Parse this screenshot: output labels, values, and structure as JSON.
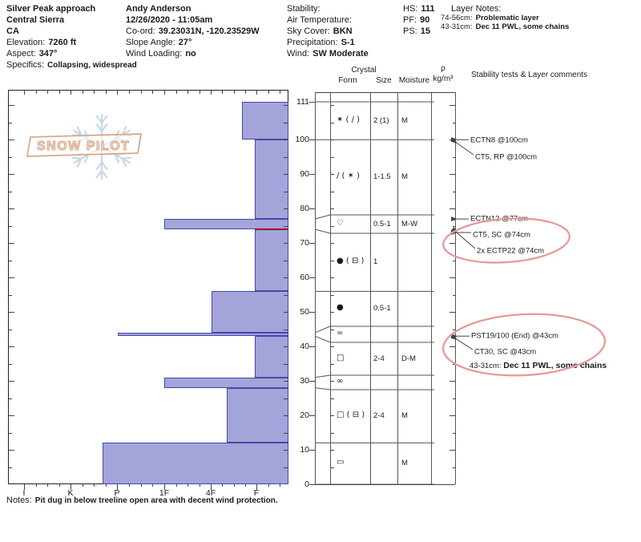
{
  "header": {
    "site": {
      "name": "Silver Peak approach",
      "region": "Central Sierra",
      "state": "CA",
      "elevation_label": "Elevation:",
      "elevation": "7260 ft",
      "aspect_label": "Aspect:",
      "aspect": "347°",
      "specifics_label": "Specifics:",
      "specifics": "Collapsing, widespread"
    },
    "observer": {
      "name": "Andy Anderson",
      "datetime": "12/26/2020 - 11:05am",
      "coord_label": "Co-ord:",
      "coord": "39.23031N, -120.23529W",
      "slope_label": "Slope Angle:",
      "slope": "27°",
      "wind_loading_label": "Wind Loading:",
      "wind_loading": "no"
    },
    "weather": {
      "stability_label": "Stability:",
      "air_temp_label": "Air Temperature:",
      "sky_label": "Sky Cover:",
      "sky": "BKN",
      "precip_label": "Precipitation:",
      "precip": "S-1",
      "wind_label": "Wind:",
      "wind": "SW Moderate"
    },
    "depths": {
      "hs_label": "HS:",
      "hs": "111",
      "pf_label": "PF:",
      "pf": "90",
      "ps_label": "PS:",
      "ps": "15"
    },
    "layer_notes": {
      "title": "Layer Notes:",
      "notes": [
        {
          "range": "74-56cm:",
          "text": "Problematic layer"
        },
        {
          "range": "43-31cm:",
          "text": "Dec 11 PWL, some chains"
        }
      ]
    }
  },
  "logo": {
    "text": "SNOW PILOT"
  },
  "columns": {
    "crystal": "Crystal",
    "form": "Form",
    "size": "Size",
    "moisture": "Moisture",
    "rho": "ρ",
    "rho_units": "kg/m³",
    "stability": "Stability tests & Layer comments"
  },
  "chart_data": {
    "type": "bar",
    "orientation": "horizontal",
    "title": "Snow hardness profile",
    "depth_axis": {
      "unit": "cm",
      "max": 111,
      "tick_labels": [
        111,
        100,
        90,
        80,
        70,
        60,
        50,
        40,
        30,
        20,
        10,
        0
      ]
    },
    "hardness_axis": {
      "tick_labels": [
        "I",
        "K",
        "P",
        "1F",
        "4F",
        "F"
      ]
    },
    "layers": [
      {
        "top_cm": 111,
        "bottom_cm": 100,
        "hardness": "F+",
        "form": "✶ ( / )",
        "grain": "PP (DF)",
        "size": "2 (1)",
        "moisture": "M"
      },
      {
        "top_cm": 100,
        "bottom_cm": 77,
        "hardness": "F",
        "form": "/ ( ✶ )",
        "grain": "DF (PP)",
        "size": "1-1.5",
        "moisture": "M"
      },
      {
        "top_cm": 77,
        "bottom_cm": 74,
        "hardness": "1F",
        "form": "♡",
        "grain": "PPgp",
        "size": "0.5-1",
        "moisture": "M-W"
      },
      {
        "top_cm": 74,
        "bottom_cm": 56,
        "hardness": "F",
        "form": "● ( ⊟ )",
        "grain": "RG (FCxr)",
        "size": "1",
        "moisture": ""
      },
      {
        "top_cm": 56,
        "bottom_cm": 44,
        "hardness": "4F",
        "form": "●",
        "grain": "RG",
        "size": "0.5-1",
        "moisture": ""
      },
      {
        "top_cm": 44,
        "bottom_cm": 43,
        "hardness": "P",
        "form": "=",
        "grain": "IF",
        "size": "",
        "moisture": ""
      },
      {
        "top_cm": 43,
        "bottom_cm": 31,
        "hardness": "F",
        "form": "□",
        "grain": "FC",
        "size": "2-4",
        "moisture": "D-M"
      },
      {
        "top_cm": 31,
        "bottom_cm": 28,
        "hardness": "1F",
        "form": "∞",
        "grain": "MFcl",
        "size": "",
        "moisture": ""
      },
      {
        "top_cm": 28,
        "bottom_cm": 12,
        "hardness": "4F+",
        "form": "□ ( ⊟ )",
        "grain": "FC (FCxr)",
        "size": "2-4",
        "moisture": "M"
      },
      {
        "top_cm": 12,
        "bottom_cm": 0,
        "hardness": "P+",
        "form": "▭",
        "grain": "MFcr",
        "size": "",
        "moisture": "M"
      }
    ],
    "weak_layer_red_line_cm": 74,
    "stability_tests": [
      {
        "label": "ECTN8 @100cm",
        "depth_cm": 100
      },
      {
        "label": "CT5, RP @100cm",
        "depth_cm": 100
      },
      {
        "label": "ECTN12 @77cm",
        "depth_cm": 77
      },
      {
        "label": "CT5, SC @74cm",
        "depth_cm": 74
      },
      {
        "label": "2x ECTP22 @74cm",
        "depth_cm": 74
      },
      {
        "label": "PST19/100 (End) @43cm",
        "depth_cm": 43
      },
      {
        "label": "CT30, SC @43cm",
        "depth_cm": 43
      }
    ],
    "inline_comment": {
      "range": "43-31cm:",
      "text": "Dec 11 PWL, some chains"
    },
    "red_circle_annotations": [
      {
        "around": "CT5, SC @74cm and 2x ECTP22 @74cm"
      },
      {
        "around": "PST19/100, CT30 @43cm and Dec 11 PWL comment"
      }
    ],
    "notes_label": "Notes:",
    "notes": "Pit dug in below treeline open area with decent wind protection.",
    "colors": {
      "bar_fill": "#a3a4da",
      "bar_border": "#4646aa",
      "red_line": "#a60030",
      "annotation": "#e69a9a"
    }
  }
}
